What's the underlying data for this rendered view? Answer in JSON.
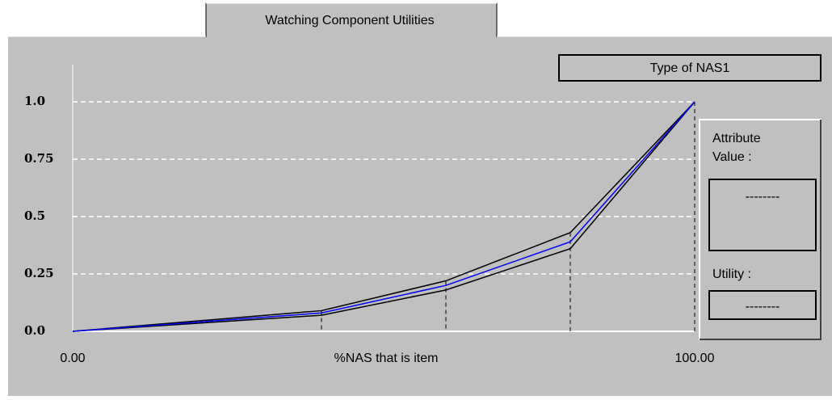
{
  "tab": {
    "label": "Watching Component Utilities"
  },
  "attribute_box": {
    "title": "Type of NAS1"
  },
  "side_panel": {
    "attribute_label": "Attribute\nValue :",
    "attribute_value": "--------",
    "utility_label": "Utility :",
    "utility_value": "--------"
  },
  "chart_data": {
    "type": "line",
    "x_label": "%NAS that is item",
    "x": [
      0,
      40,
      60,
      80,
      100
    ],
    "series": [
      {
        "color": "#000000",
        "values": [
          0,
          0.09,
          0.22,
          0.43,
          1.0
        ]
      },
      {
        "color": "#000000",
        "values": [
          0,
          0.07,
          0.18,
          0.36,
          1.0
        ]
      },
      {
        "color": "#0000ff",
        "values": [
          0,
          0.08,
          0.2,
          0.39,
          1.0
        ]
      }
    ],
    "xlim": [
      0,
      100
    ],
    "xticks": [
      {
        "value": 0,
        "label": "0.00"
      },
      {
        "value": 100,
        "label": "100.00"
      }
    ],
    "ylim": [
      0,
      1.0
    ],
    "yticks": [
      {
        "value": 0,
        "label": "0.0"
      },
      0.25,
      0.5,
      0.75,
      {
        "value": 1,
        "label": "1.0"
      }
    ],
    "grid": true
  }
}
